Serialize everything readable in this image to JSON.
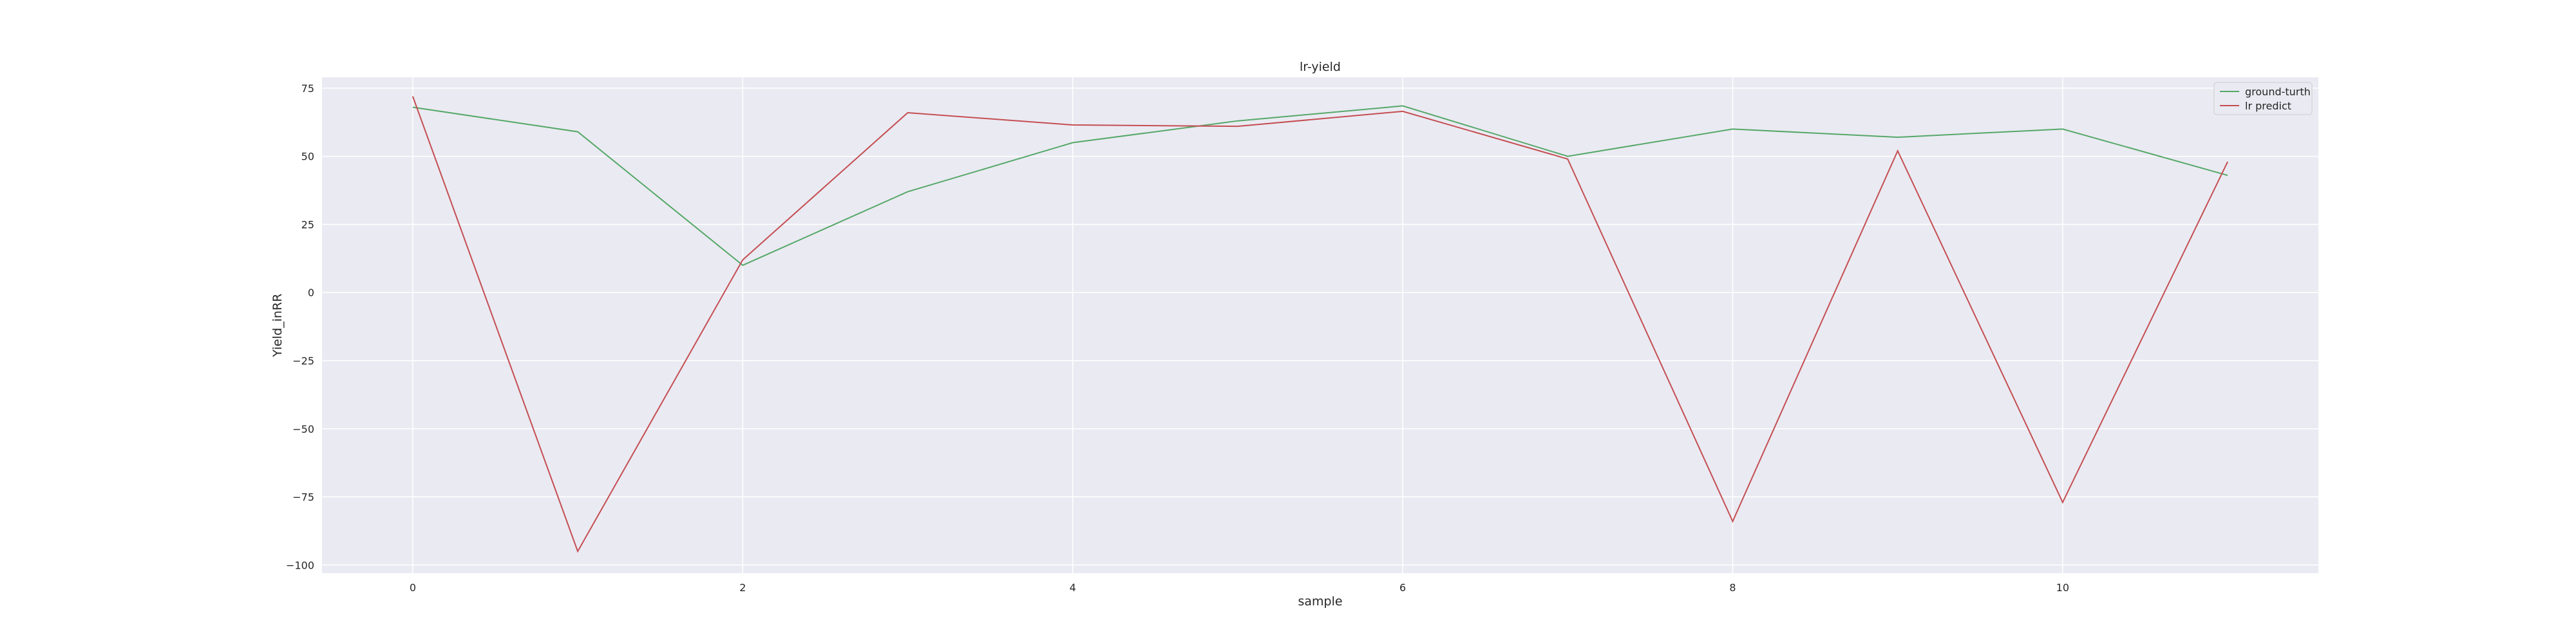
{
  "chart_data": {
    "type": "line",
    "title": "lr-yield",
    "xlabel": "sample",
    "ylabel": "Yield_inRR",
    "x": [
      0,
      1,
      2,
      3,
      4,
      5,
      6,
      7,
      8,
      9,
      10,
      11
    ],
    "xticks": [
      0,
      2,
      4,
      6,
      8,
      10
    ],
    "xtick_labels": [
      "0",
      "2",
      "4",
      "6",
      "8",
      "10"
    ],
    "xlim": [
      -0.55,
      11.55
    ],
    "yticks": [
      75,
      50,
      25,
      0,
      -25,
      -50,
      -75,
      -100
    ],
    "ytick_labels": [
      "75",
      "50",
      "25",
      "0",
      "−25",
      "−50",
      "−75",
      "−100"
    ],
    "ylim": [
      -103,
      79
    ],
    "grid": true,
    "legend_position": "top-right",
    "series": [
      {
        "name": "ground-turth",
        "color": "#55a868",
        "values": [
          68,
          59,
          10,
          37,
          55,
          63,
          68.5,
          50,
          60,
          57,
          60,
          43
        ]
      },
      {
        "name": "lr predict",
        "color": "#c44e52",
        "values": [
          72,
          -95,
          12,
          66,
          61.5,
          61,
          66.5,
          49,
          -84,
          52,
          -77,
          48
        ]
      }
    ],
    "colors": {
      "plot_background": "#eaeaf2",
      "grid": "#ffffff",
      "text": "#262626"
    }
  }
}
